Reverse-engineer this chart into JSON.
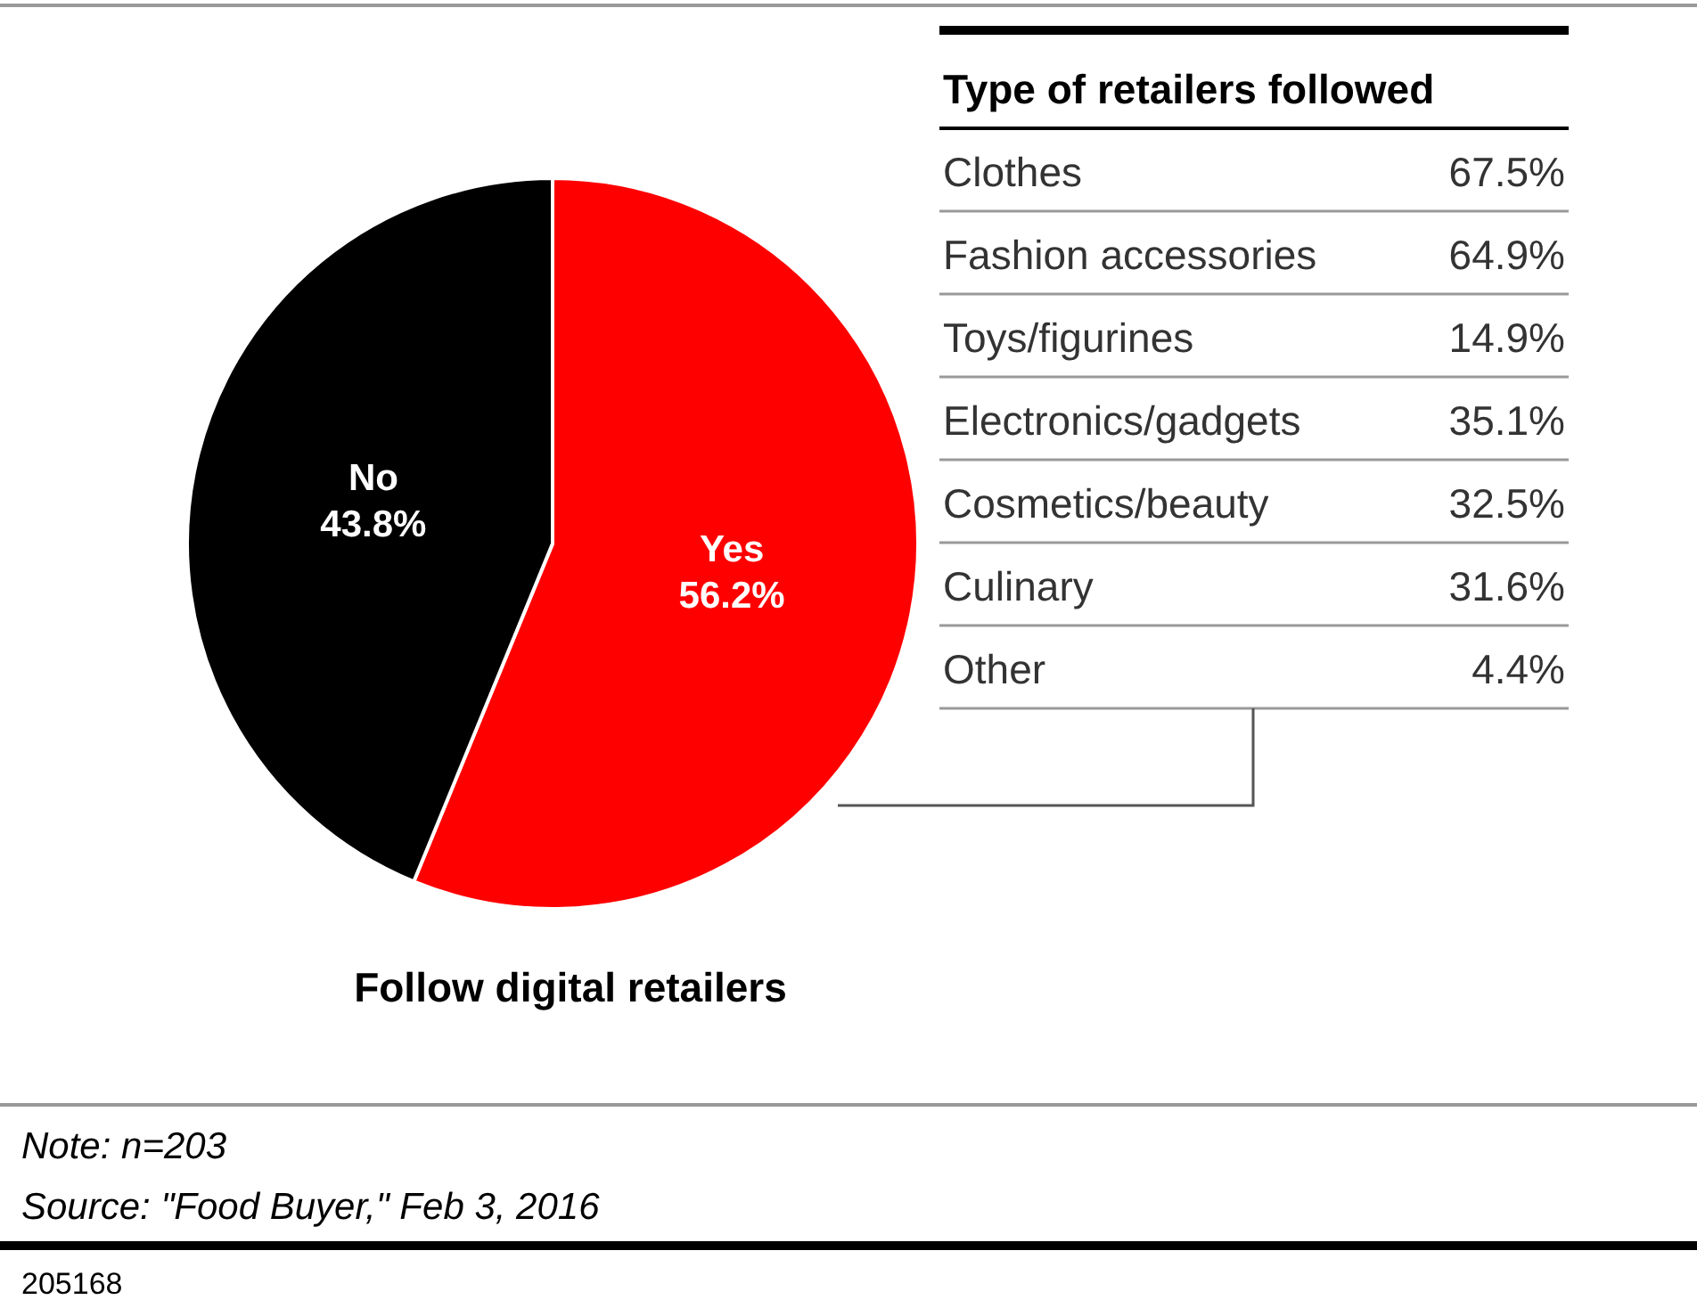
{
  "chart_data": [
    {
      "type": "pie",
      "title": "Follow digital retailers",
      "categories": [
        "Yes",
        "No"
      ],
      "values": [
        56.2,
        43.8
      ],
      "colors": [
        "#ff0000",
        "#000000"
      ],
      "value_labels": [
        "56.2%",
        "43.8%"
      ],
      "annotations": [
        "Note: n=203",
        "Source: \"Food Buyer,\" Feb 3, 2016",
        "205168"
      ]
    },
    {
      "type": "other",
      "title": "Type of retailers followed",
      "categories": [
        "Clothes",
        "Fashion accessories",
        "Toys/figurines",
        "Electronics/gadgets",
        "Cosmetics/beauty",
        "Culinary",
        "Other"
      ],
      "values": [
        67.5,
        64.9,
        14.9,
        35.1,
        32.5,
        31.6,
        4.4
      ],
      "value_labels": [
        "67.5%",
        "64.9%",
        "14.9%",
        "35.1%",
        "32.5%",
        "31.6%",
        "4.4%"
      ]
    }
  ]
}
